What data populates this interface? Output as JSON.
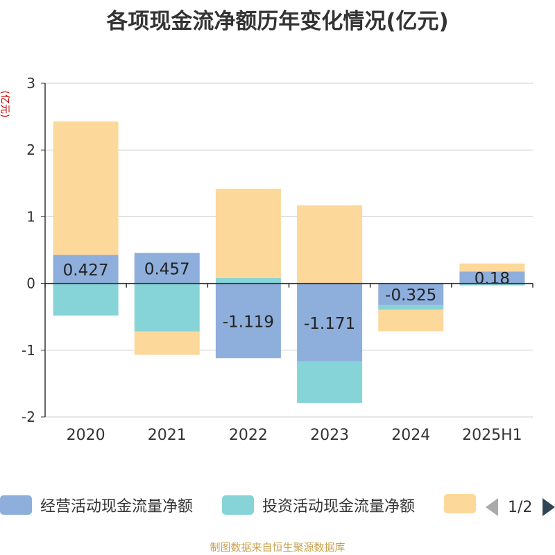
{
  "title": "各项现金流净额历年变化情况(亿元)",
  "unit_label": "(亿元)",
  "source": "制图数据来自恒生聚源数据库",
  "pager": {
    "text": "1/2"
  },
  "colors": {
    "operating": "#8eaedb",
    "investing": "#86d4d8",
    "financing": "#fdd89b"
  },
  "legend": [
    {
      "label": "经营活动现金流量净额",
      "color": "#8eaedb"
    },
    {
      "label": "投资活动现金流量净额",
      "color": "#86d4d8"
    },
    {
      "label": "",
      "color": "#fdd89b"
    }
  ],
  "chart_data": {
    "type": "bar",
    "stacked": true,
    "categories": [
      "2020",
      "2021",
      "2022",
      "2023",
      "2024",
      "2025H1"
    ],
    "ylim": [
      -2,
      3
    ],
    "yticks": [
      3,
      2,
      1,
      0,
      -1,
      -2
    ],
    "series": [
      {
        "name": "经营活动现金流量净额",
        "values": [
          0.427,
          0.457,
          -1.119,
          -1.171,
          -0.325,
          0.18
        ],
        "labels": [
          "0.427",
          "0.457",
          "-1.119",
          "-1.171",
          "-0.325",
          "0.18"
        ]
      },
      {
        "name": "投资活动现金流量净额",
        "values": [
          -0.48,
          -0.72,
          0.08,
          -0.62,
          -0.07,
          -0.03
        ]
      },
      {
        "values": [
          2.0,
          -0.35,
          1.34,
          1.17,
          -0.32,
          0.12
        ]
      }
    ],
    "grid": true,
    "legend_position": "bottom"
  }
}
